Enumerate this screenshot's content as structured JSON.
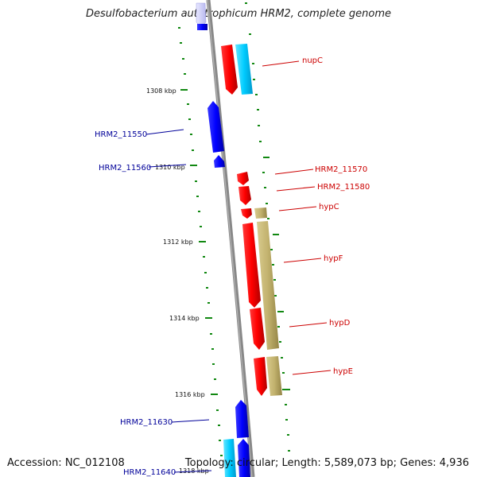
{
  "title": "Desulfobacterium autotrophicum HRM2, complete genome",
  "footer": {
    "accession": "Accession: NC_012108",
    "topology": "Topology: circular; Length: 5,589,073 bp; Genes: 4,936"
  },
  "kbp_labels": [
    "1308 kbp",
    "1310 kbp",
    "1312 kbp",
    "1314 kbp",
    "1316 kbp",
    "1318 kbp"
  ],
  "gene_labels": {
    "nupC": "nupC",
    "HRM2_11550": "HRM2_11550",
    "HRM2_11560": "HRM2_11560",
    "HRM2_11570": "HRM2_11570",
    "HRM2_11580": "HRM2_11580",
    "hypC": "hypC",
    "hypF": "hypF",
    "hypD": "hypD",
    "hypE": "hypE",
    "HRM2_11630": "HRM2_11630",
    "HRM2_11640": "HRM2_11640"
  },
  "colors": {
    "forward_gene": "#ff0000",
    "reverse_gene": "#0000ff",
    "cog_olive": "#c2b26e",
    "cog_cyan": "#00ccff",
    "backbone": "#888888",
    "tick": "#118811",
    "red_label": "#cc0000",
    "blue_label": "#000099"
  }
}
